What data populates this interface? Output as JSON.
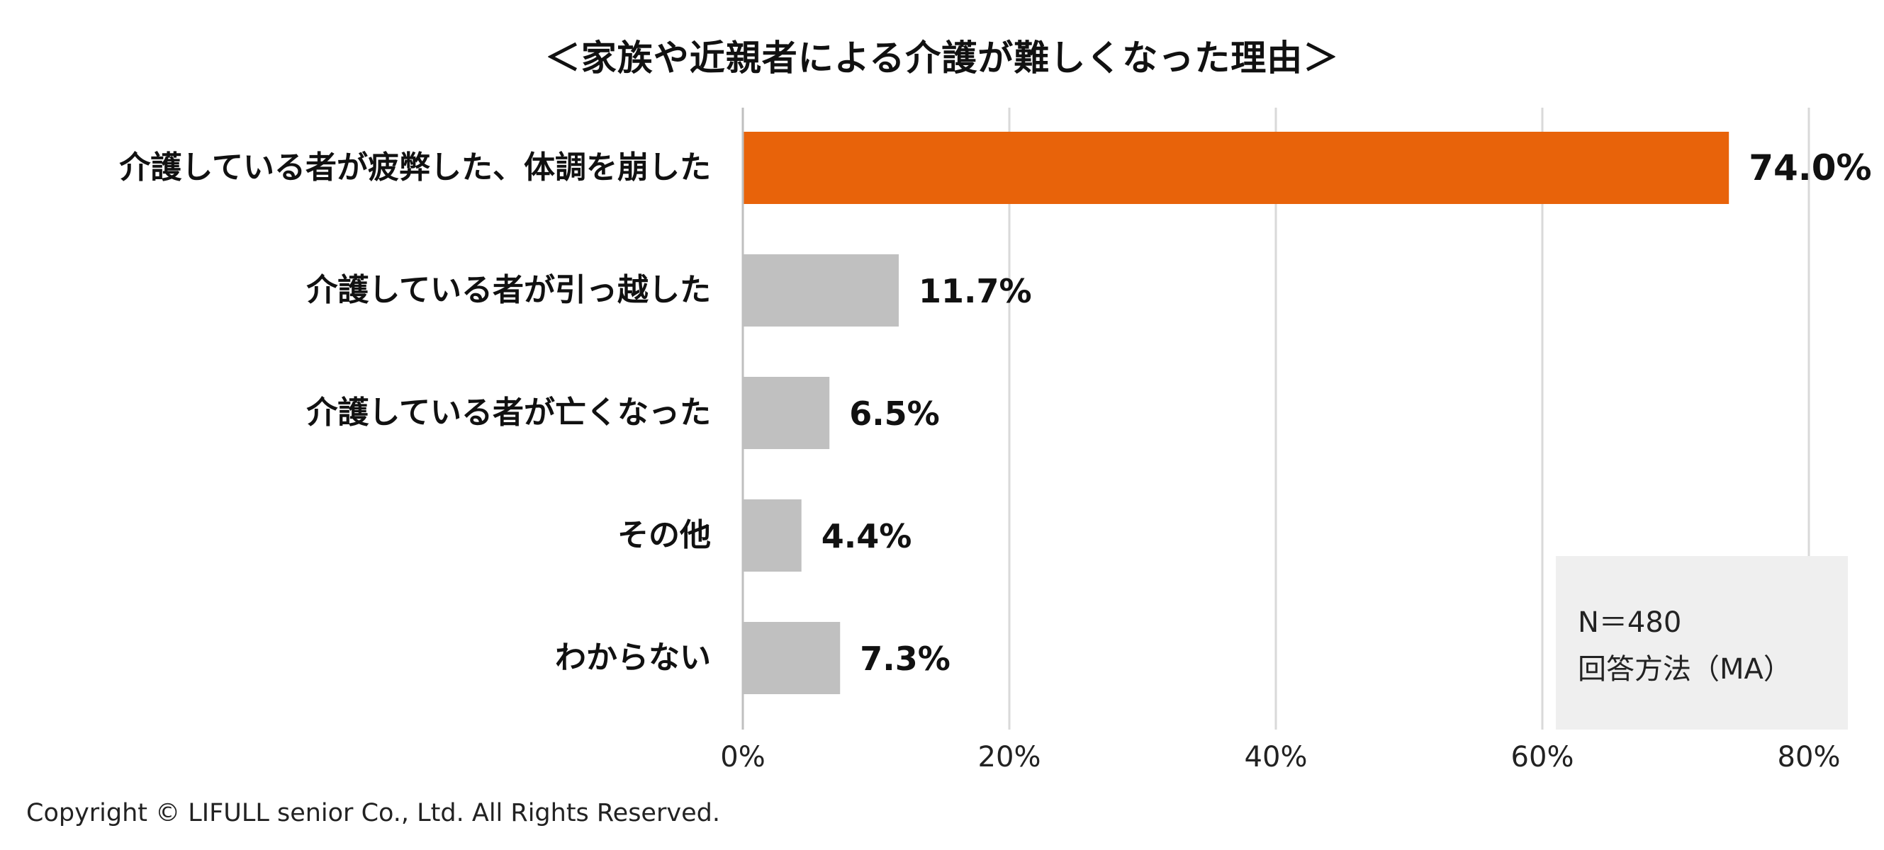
{
  "chart_data": {
    "type": "bar",
    "orientation": "horizontal",
    "title": "＜家族や近親者による介護が難しくなった理由＞",
    "categories": [
      "介護している者が疲弊した、体調を崩した",
      "介護している者が引っ越した",
      "介護している者が亡くなった",
      "その他",
      "わからない"
    ],
    "values": [
      74.0,
      11.7,
      6.5,
      4.4,
      7.3
    ],
    "value_labels": [
      "74.0%",
      "11.7%",
      "6.5%",
      "4.4%",
      "7.3%"
    ],
    "highlight_index": 0,
    "xlim": [
      0,
      80
    ],
    "xticks": [
      0,
      20,
      40,
      60,
      80
    ],
    "xtick_labels": [
      "0%",
      "20%",
      "40%",
      "60%",
      "80%"
    ],
    "xlabel": "",
    "ylabel": "",
    "grid": true,
    "colors": {
      "highlight": "#E8630A",
      "default": "#C0C0C0",
      "grid": "#D9D9D9",
      "axis": "#BFBFBF",
      "text": "#111111"
    }
  },
  "note": {
    "n_label": "N＝480",
    "method_label": "回答方法（MA）"
  },
  "footer": {
    "copyright": "Copyright © LIFULL senior Co., Ltd. All Rights Reserved."
  }
}
